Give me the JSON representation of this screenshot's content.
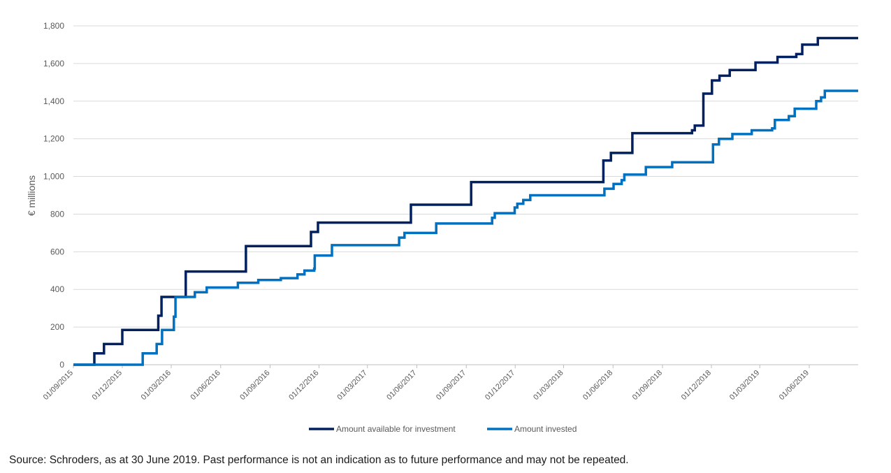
{
  "chart_data": {
    "type": "line",
    "title": "",
    "xlabel": "",
    "ylabel": "€ millions",
    "ylim": [
      0,
      1800
    ],
    "yticks": [
      0,
      200,
      400,
      600,
      800,
      1000,
      1200,
      1400,
      1600,
      1800
    ],
    "ytick_labels": [
      "0",
      "200",
      "400",
      "600",
      "800",
      "1,000",
      "1,200",
      "1,400",
      "1,600",
      "1,800"
    ],
    "xlim": [
      "2015-09-01",
      "2019-08-31"
    ],
    "xticks": [
      "2015-09-01",
      "2015-12-01",
      "2016-03-01",
      "2016-06-01",
      "2016-09-01",
      "2016-12-01",
      "2017-03-01",
      "2017-06-01",
      "2017-09-01",
      "2017-12-01",
      "2018-03-01",
      "2018-06-01",
      "2018-09-01",
      "2018-12-01",
      "2019-03-01",
      "2019-06-01"
    ],
    "xtick_labels": [
      "01/09/2015",
      "01/12/2015",
      "01/03/2016",
      "01/06/2016",
      "01/09/2016",
      "01/12/2016",
      "01/03/2017",
      "01/06/2017",
      "01/09/2017",
      "01/12/2017",
      "01/03/2018",
      "01/06/2018",
      "01/09/2018",
      "01/12/2018",
      "01/03/2019",
      "01/06/2019"
    ],
    "grid": "horizontal",
    "legend_position": "bottom",
    "series": [
      {
        "name": "Amount available for investment",
        "color": "#002060",
        "step": true,
        "points": [
          [
            "2015-09-01",
            0
          ],
          [
            "2015-10-10",
            60
          ],
          [
            "2015-10-28",
            110
          ],
          [
            "2015-12-01",
            185
          ],
          [
            "2016-02-06",
            260
          ],
          [
            "2016-02-12",
            360
          ],
          [
            "2016-03-28",
            495
          ],
          [
            "2016-07-18",
            630
          ],
          [
            "2016-11-16",
            705
          ],
          [
            "2016-11-29",
            755
          ],
          [
            "2017-05-21",
            850
          ],
          [
            "2017-09-10",
            970
          ],
          [
            "2018-05-14",
            1085
          ],
          [
            "2018-05-28",
            1125
          ],
          [
            "2018-07-07",
            1230
          ],
          [
            "2018-10-26",
            1245
          ],
          [
            "2018-10-31",
            1270
          ],
          [
            "2018-11-16",
            1440
          ],
          [
            "2018-12-02",
            1510
          ],
          [
            "2018-12-16",
            1535
          ],
          [
            "2019-01-04",
            1565
          ],
          [
            "2019-02-21",
            1605
          ],
          [
            "2019-04-03",
            1635
          ],
          [
            "2019-05-08",
            1650
          ],
          [
            "2019-05-19",
            1700
          ],
          [
            "2019-06-17",
            1735
          ]
        ]
      },
      {
        "name": "Amount invested",
        "color": "#0070C0",
        "step": true,
        "points": [
          [
            "2015-09-01",
            0
          ],
          [
            "2016-01-08",
            60
          ],
          [
            "2016-02-03",
            110
          ],
          [
            "2016-02-13",
            185
          ],
          [
            "2016-03-06",
            255
          ],
          [
            "2016-03-09",
            360
          ],
          [
            "2016-04-14",
            385
          ],
          [
            "2016-05-06",
            410
          ],
          [
            "2016-07-03",
            435
          ],
          [
            "2016-08-10",
            450
          ],
          [
            "2016-09-21",
            460
          ],
          [
            "2016-10-22",
            480
          ],
          [
            "2016-11-04",
            500
          ],
          [
            "2016-11-22",
            510
          ],
          [
            "2016-11-23",
            580
          ],
          [
            "2016-12-25",
            635
          ],
          [
            "2017-04-29",
            675
          ],
          [
            "2017-05-09",
            700
          ],
          [
            "2017-07-07",
            750
          ],
          [
            "2017-10-19",
            780
          ],
          [
            "2017-10-24",
            805
          ],
          [
            "2017-11-30",
            835
          ],
          [
            "2017-12-05",
            855
          ],
          [
            "2017-12-16",
            875
          ],
          [
            "2017-12-29",
            900
          ],
          [
            "2018-05-16",
            935
          ],
          [
            "2018-06-02",
            960
          ],
          [
            "2018-06-17",
            980
          ],
          [
            "2018-06-22",
            1010
          ],
          [
            "2018-08-01",
            1050
          ],
          [
            "2018-09-19",
            1075
          ],
          [
            "2018-12-04",
            1170
          ],
          [
            "2018-12-15",
            1200
          ],
          [
            "2019-01-09",
            1225
          ],
          [
            "2019-02-14",
            1245
          ],
          [
            "2019-03-24",
            1255
          ],
          [
            "2019-03-29",
            1300
          ],
          [
            "2019-04-24",
            1320
          ],
          [
            "2019-05-05",
            1360
          ],
          [
            "2019-06-14",
            1400
          ],
          [
            "2019-06-23",
            1420
          ],
          [
            "2019-06-30",
            1455
          ]
        ]
      }
    ]
  },
  "source_note": "Source: Schroders, as at 30 June 2019. Past performance is not an indication as to future performance and may not be repeated."
}
